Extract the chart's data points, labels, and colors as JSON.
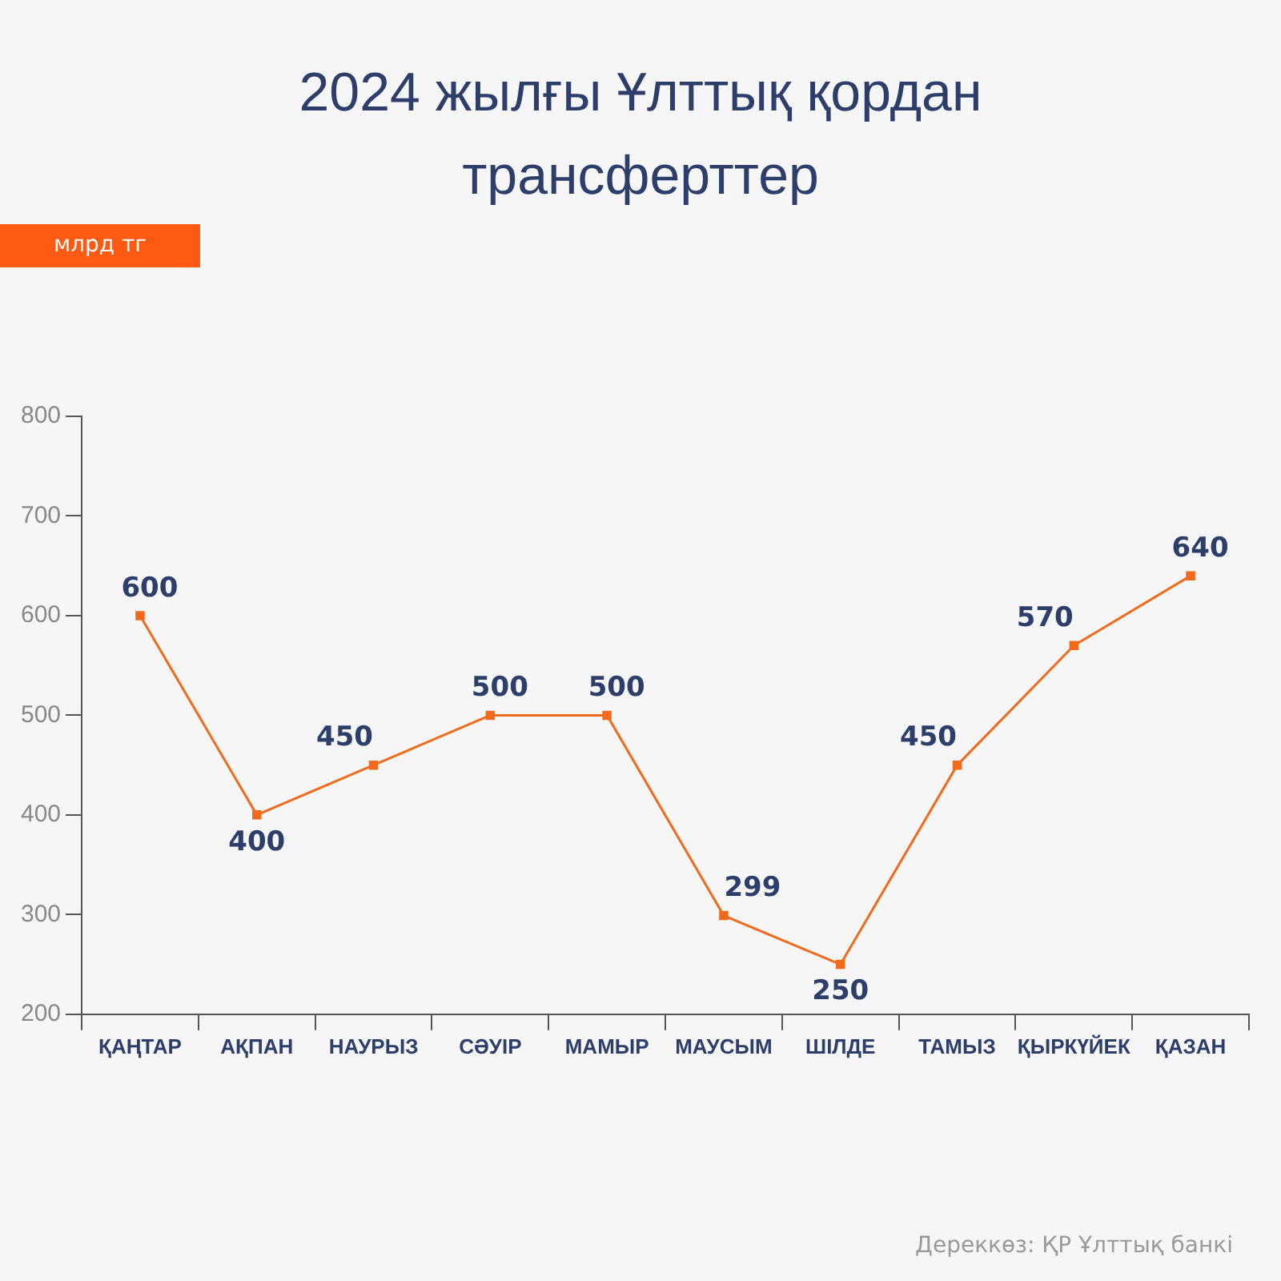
{
  "chart_data": {
    "type": "line",
    "title": "2024 жылғы Ұлттық қордан трансферттер",
    "categories": [
      "ҚАҢТАР",
      "АҚПАН",
      "НАУРЫЗ",
      "СӘУІР",
      "МАМЫР",
      "МАУСЫМ",
      "ШІЛДЕ",
      "ТАМЫЗ",
      "ҚЫРКҮЙЕК",
      "ҚАЗАН"
    ],
    "series": [
      {
        "color": "#f26a1b",
        "values": [
          600,
          400,
          450,
          500,
          500,
          299,
          250,
          450,
          570,
          640
        ]
      }
    ],
    "ylim": [
      200,
      800
    ],
    "yticks": [
      200,
      300,
      400,
      500,
      600,
      700,
      800
    ],
    "grid": false,
    "marker": "square",
    "line_style": "solid",
    "data_labels": true,
    "annotations": [
      "млрд тг",
      "Дереккөз: ҚР Ұлттық банкі"
    ]
  }
}
